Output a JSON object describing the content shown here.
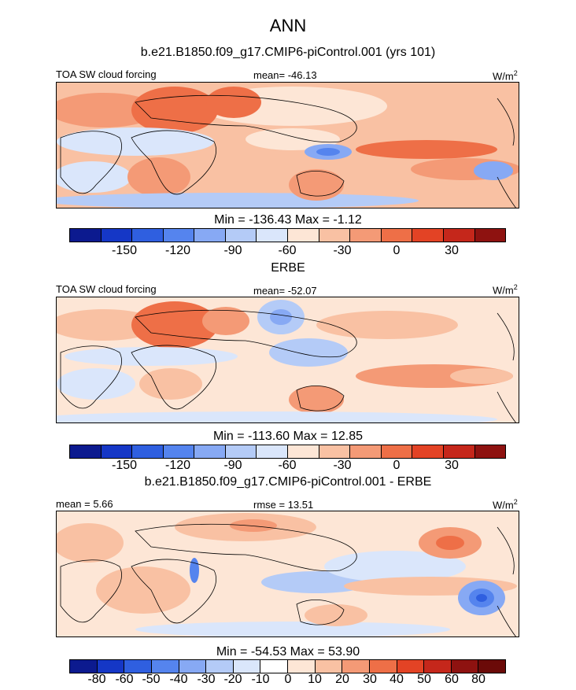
{
  "title": "ANN",
  "panels": [
    {
      "subtitle": "b.e21.B1850.f09_g17.CMIP6-piControl.001 (yrs 101)",
      "left_label": "TOA SW cloud forcing",
      "center_label": "mean= -46.13",
      "units_base": "W/m",
      "units_exp": "2",
      "minmax": "Min = -136.43 Max =  -1.12",
      "colorbar_ticks": [
        "-150",
        "-120",
        "-90",
        "-60",
        "-30",
        "0",
        "30"
      ]
    },
    {
      "subtitle": "ERBE",
      "left_label": "TOA SW cloud forcing",
      "center_label": "mean= -52.07",
      "units_base": "W/m",
      "units_exp": "2",
      "minmax": "Min = -113.60 Max =  12.85",
      "colorbar_ticks": [
        "-150",
        "-120",
        "-90",
        "-60",
        "-30",
        "0",
        "30"
      ]
    },
    {
      "subtitle": "b.e21.B1850.f09_g17.CMIP6-piControl.001 - ERBE",
      "left_label": "mean =   5.66",
      "center_label": "rmse =  13.51",
      "units_base": "W/m",
      "units_exp": "2",
      "minmax": "Min = -54.53 Max =  53.90",
      "colorbar_ticks": [
        "-80",
        "-60",
        "-50",
        "-40",
        "-30",
        "-20",
        "-10",
        "0",
        "10",
        "20",
        "30",
        "40",
        "50",
        "60",
        "80"
      ]
    }
  ],
  "colors": {
    "abs_scale": [
      "#0c1a8f",
      "#1537c6",
      "#2f5fe0",
      "#5584ee",
      "#87a9f4",
      "#b4cbf7",
      "#dae6fb",
      "#fde6d6",
      "#f9c1a3",
      "#f49a76",
      "#ee6f47",
      "#e34325",
      "#c5271b",
      "#8e1210"
    ],
    "diff_scale": [
      "#0c1a8f",
      "#1537c6",
      "#2f5fe0",
      "#5584ee",
      "#87a9f4",
      "#b4cbf7",
      "#dae6fb",
      "#ffffff",
      "#fde6d6",
      "#f9c1a3",
      "#f49a76",
      "#ee6f47",
      "#e34325",
      "#c5271b",
      "#8e1210"
    ]
  },
  "chart_data": [
    {
      "type": "heatmap",
      "title": "b.e21.B1850.f09_g17.CMIP6-piControl.001 (yrs 101)",
      "variable": "TOA SW cloud forcing",
      "units": "W/m2",
      "mean": -46.13,
      "min": -136.43,
      "max": -1.12,
      "contour_levels": [
        -165,
        -150,
        -135,
        -120,
        -105,
        -90,
        -75,
        -60,
        -45,
        -30,
        -15,
        0,
        15,
        30,
        45
      ]
    },
    {
      "type": "heatmap",
      "title": "ERBE",
      "variable": "TOA SW cloud forcing",
      "units": "W/m2",
      "mean": -52.07,
      "min": -113.6,
      "max": 12.85,
      "contour_levels": [
        -165,
        -150,
        -135,
        -120,
        -105,
        -90,
        -75,
        -60,
        -45,
        -30,
        -15,
        0,
        15,
        30,
        45
      ]
    },
    {
      "type": "heatmap",
      "title": "b.e21.B1850.f09_g17.CMIP6-piControl.001 - ERBE",
      "units": "W/m2",
      "mean": 5.66,
      "rmse": 13.51,
      "min": -54.53,
      "max": 53.9,
      "contour_levels": [
        -80,
        -60,
        -50,
        -40,
        -30,
        -20,
        -10,
        0,
        10,
        20,
        30,
        40,
        50,
        60,
        80
      ]
    }
  ]
}
